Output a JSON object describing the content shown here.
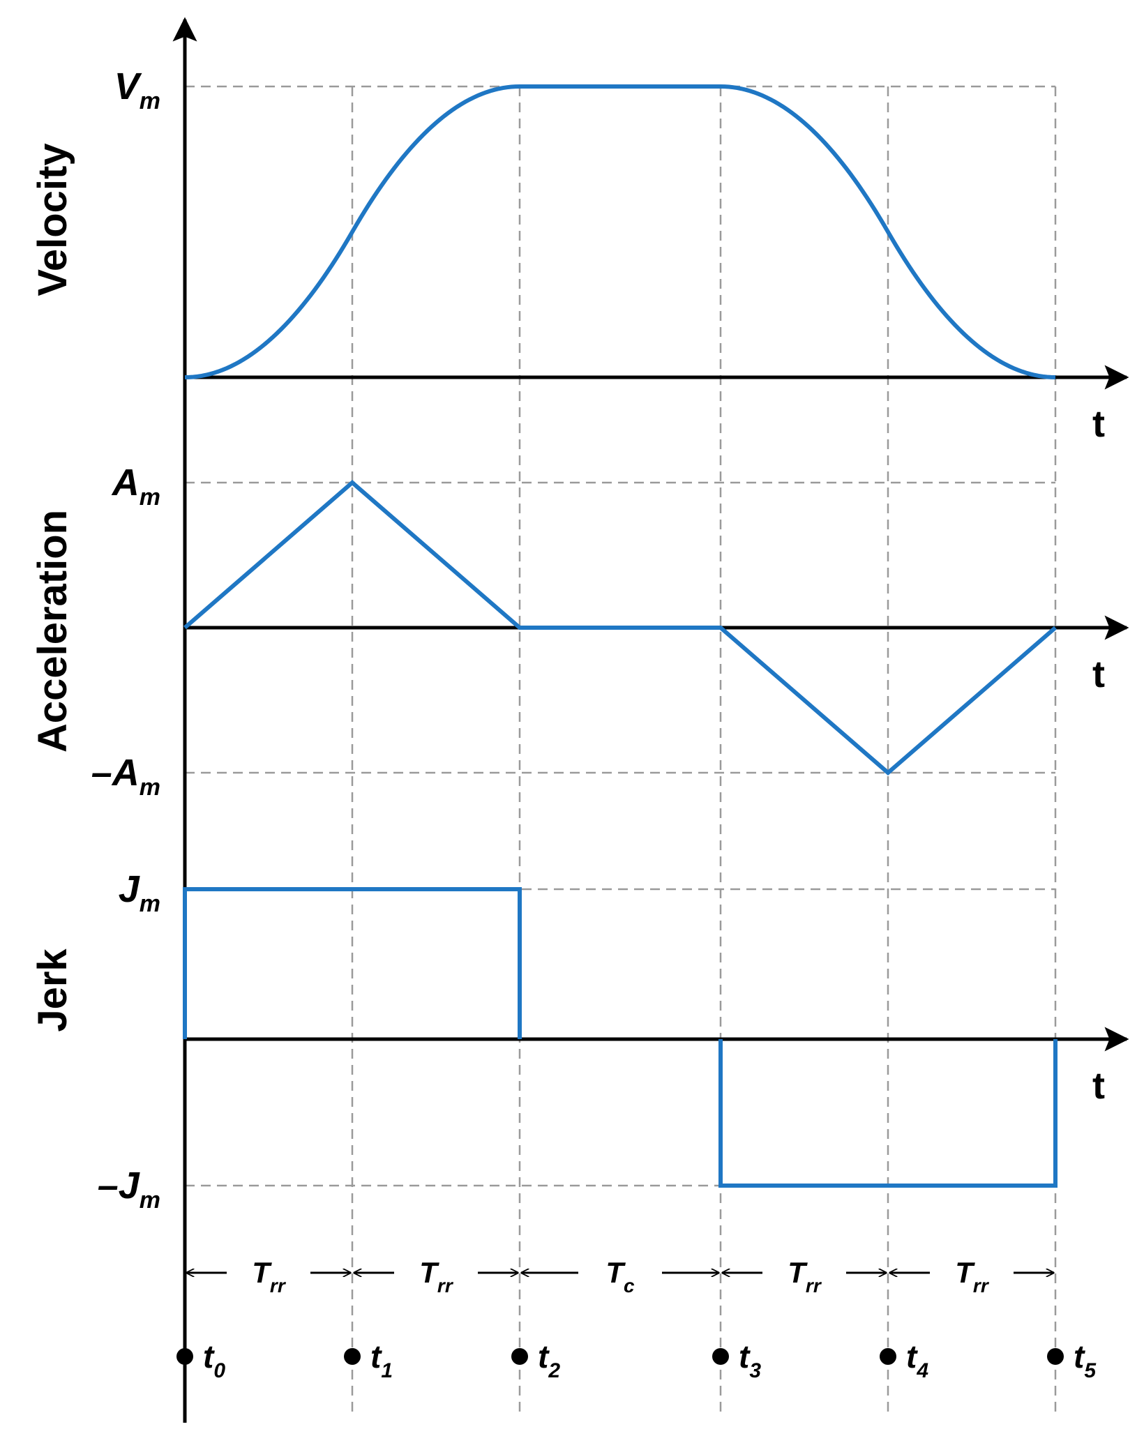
{
  "colors": {
    "curve": "#1f77c4",
    "axis": "#000000",
    "grid": "#9a9a9a"
  },
  "panels": [
    {
      "id": "velocity",
      "title": "Velocity",
      "t_label": "t",
      "max_label": {
        "main": "V",
        "sub": "m"
      },
      "min_label": null
    },
    {
      "id": "acceleration",
      "title": "Acceleration",
      "t_label": "t",
      "max_label": {
        "main": "A",
        "sub": "m"
      },
      "min_label": {
        "main": "–A",
        "sub": "m"
      }
    },
    {
      "id": "jerk",
      "title": "Jerk",
      "t_label": "t",
      "max_label": {
        "main": "J",
        "sub": "m"
      },
      "min_label": {
        "main": "–J",
        "sub": "m"
      }
    }
  ],
  "profile": {
    "time_marks": [
      0,
      1,
      2,
      3.2,
      4.2,
      5.2
    ],
    "velocity": {
      "x": [
        0,
        1,
        2,
        3.2,
        4.2,
        5.2
      ],
      "y": [
        0,
        0.5,
        1,
        1,
        0.5,
        0
      ]
    },
    "acceleration": {
      "x": [
        0,
        1,
        2,
        3.2,
        4.2,
        5.2
      ],
      "y": [
        0,
        1,
        0,
        0,
        -1,
        0
      ]
    },
    "jerk": {
      "x": [
        0,
        2,
        2,
        3.2,
        3.2,
        5.2
      ],
      "y": [
        1,
        1,
        0,
        0,
        -1,
        -1
      ]
    }
  },
  "periods": [
    {
      "main": "T",
      "sub": "rr"
    },
    {
      "main": "T",
      "sub": "rr"
    },
    {
      "main": "T",
      "sub": "c"
    },
    {
      "main": "T",
      "sub": "rr"
    },
    {
      "main": "T",
      "sub": "rr"
    }
  ],
  "time_points": [
    {
      "main": "t",
      "sub": "0"
    },
    {
      "main": "t",
      "sub": "1"
    },
    {
      "main": "t",
      "sub": "2"
    },
    {
      "main": "t",
      "sub": "3"
    },
    {
      "main": "t",
      "sub": "4"
    },
    {
      "main": "t",
      "sub": "5"
    }
  ]
}
